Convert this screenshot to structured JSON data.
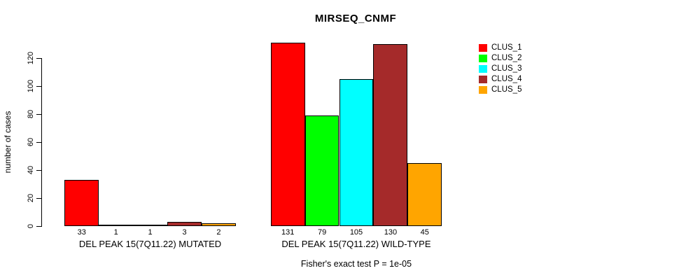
{
  "title": "MIRSEQ_CNMF",
  "y_axis": {
    "label": "number of cases",
    "ticks": [
      0,
      20,
      40,
      60,
      80,
      100,
      120
    ]
  },
  "footer": "Fisher's exact test P = 1e-05",
  "legend": {
    "items": [
      {
        "label": "CLUS_1",
        "color": "#FF0000"
      },
      {
        "label": "CLUS_2",
        "color": "#00FF00"
      },
      {
        "label": "CLUS_3",
        "color": "#00FFFF"
      },
      {
        "label": "CLUS_4",
        "color": "#A52A2A"
      },
      {
        "label": "CLUS_5",
        "color": "#FFA500"
      }
    ]
  },
  "chart_data": {
    "type": "bar",
    "title": "MIRSEQ_CNMF",
    "xlabel": "",
    "ylabel": "number of cases",
    "ylim": [
      0,
      135
    ],
    "yticks": [
      0,
      20,
      40,
      60,
      80,
      100,
      120
    ],
    "grid": false,
    "legend_position": "top-right",
    "categories": [
      "DEL PEAK 15(7Q11.22) MUTATED",
      "DEL PEAK 15(7Q11.22) WILD-TYPE"
    ],
    "series": [
      {
        "name": "CLUS_1",
        "color": "#FF0000",
        "values": [
          33,
          131
        ]
      },
      {
        "name": "CLUS_2",
        "color": "#00FF00",
        "values": [
          1,
          79
        ]
      },
      {
        "name": "CLUS_3",
        "color": "#00FFFF",
        "values": [
          1,
          105
        ]
      },
      {
        "name": "CLUS_4",
        "color": "#A52A2A",
        "values": [
          3,
          130
        ]
      },
      {
        "name": "CLUS_5",
        "color": "#FFA500",
        "values": [
          2,
          45
        ]
      }
    ],
    "bar_value_labels": [
      [
        33,
        1,
        1,
        3,
        2
      ],
      [
        131,
        79,
        105,
        130,
        45
      ]
    ],
    "annotation": "Fisher's exact test P = 1e-05"
  }
}
